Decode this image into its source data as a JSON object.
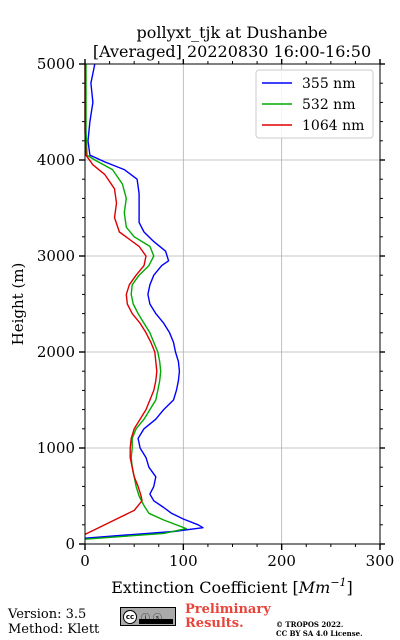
{
  "chart_data": {
    "type": "line",
    "title": "pollyxt_tjk at Dushanbe",
    "subtitle": "[Averaged] 20220830 16:00-16:50",
    "xlabel": "Extinction Coefficient [",
    "xlabel_unit": "Mm",
    "xlabel_exp": "−1",
    "xlabel_close": "]",
    "ylabel": "Height (m)",
    "xlim": [
      0,
      300
    ],
    "ylim": [
      0,
      5000
    ],
    "xticks": [
      0,
      100,
      200,
      300
    ],
    "yticks": [
      0,
      1000,
      2000,
      3000,
      4000,
      5000
    ],
    "grid": true,
    "legend_placement": "top-right",
    "series": [
      {
        "name": "355 nm",
        "color": "#0000ff",
        "points": [
          [
            0,
            60
          ],
          [
            50,
            100
          ],
          [
            90,
            130
          ],
          [
            120,
            170
          ],
          [
            115,
            200
          ],
          [
            100,
            260
          ],
          [
            88,
            320
          ],
          [
            80,
            380
          ],
          [
            70,
            450
          ],
          [
            66,
            520
          ],
          [
            70,
            600
          ],
          [
            72,
            700
          ],
          [
            65,
            800
          ],
          [
            62,
            900
          ],
          [
            56,
            1000
          ],
          [
            54,
            1100
          ],
          [
            60,
            1200
          ],
          [
            72,
            1300
          ],
          [
            80,
            1400
          ],
          [
            90,
            1500
          ],
          [
            93,
            1600
          ],
          [
            95,
            1700
          ],
          [
            96,
            1800
          ],
          [
            95,
            1900
          ],
          [
            92,
            2000
          ],
          [
            90,
            2100
          ],
          [
            86,
            2200
          ],
          [
            80,
            2300
          ],
          [
            72,
            2400
          ],
          [
            66,
            2500
          ],
          [
            64,
            2600
          ],
          [
            66,
            2700
          ],
          [
            70,
            2800
          ],
          [
            78,
            2900
          ],
          [
            85,
            2950
          ],
          [
            82,
            3050
          ],
          [
            70,
            3150
          ],
          [
            60,
            3250
          ],
          [
            55,
            3350
          ],
          [
            55,
            3500
          ],
          [
            55,
            3650
          ],
          [
            53,
            3800
          ],
          [
            40,
            3900
          ],
          [
            20,
            3980
          ],
          [
            5,
            4050
          ],
          [
            3,
            4200
          ],
          [
            5,
            4400
          ],
          [
            8,
            4600
          ],
          [
            6,
            4800
          ],
          [
            10,
            5000
          ]
        ]
      },
      {
        "name": "532 nm",
        "color": "#00aa00",
        "points": [
          [
            0,
            50
          ],
          [
            40,
            80
          ],
          [
            80,
            110
          ],
          [
            103,
            160
          ],
          [
            80,
            250
          ],
          [
            65,
            320
          ],
          [
            60,
            400
          ],
          [
            55,
            500
          ],
          [
            52,
            600
          ],
          [
            50,
            700
          ],
          [
            48,
            800
          ],
          [
            47,
            900
          ],
          [
            48,
            1000
          ],
          [
            48,
            1100
          ],
          [
            52,
            1200
          ],
          [
            60,
            1300
          ],
          [
            66,
            1400
          ],
          [
            72,
            1500
          ],
          [
            74,
            1600
          ],
          [
            76,
            1700
          ],
          [
            77,
            1800
          ],
          [
            76,
            1900
          ],
          [
            74,
            2000
          ],
          [
            70,
            2100
          ],
          [
            66,
            2200
          ],
          [
            60,
            2300
          ],
          [
            54,
            2400
          ],
          [
            49,
            2500
          ],
          [
            47,
            2600
          ],
          [
            48,
            2700
          ],
          [
            55,
            2800
          ],
          [
            65,
            2900
          ],
          [
            70,
            3000
          ],
          [
            66,
            3100
          ],
          [
            50,
            3200
          ],
          [
            42,
            3300
          ],
          [
            40,
            3450
          ],
          [
            42,
            3600
          ],
          [
            38,
            3750
          ],
          [
            28,
            3900
          ],
          [
            10,
            4000
          ],
          [
            2,
            4050
          ],
          [
            1,
            4300
          ],
          [
            1,
            4600
          ],
          [
            1,
            5000
          ]
        ]
      },
      {
        "name": "1064 nm",
        "color": "#dd0000",
        "points": [
          [
            0,
            100
          ],
          [
            10,
            150
          ],
          [
            30,
            250
          ],
          [
            50,
            350
          ],
          [
            58,
            450
          ],
          [
            57,
            500
          ],
          [
            54,
            600
          ],
          [
            50,
            700
          ],
          [
            48,
            800
          ],
          [
            46,
            900
          ],
          [
            46,
            1000
          ],
          [
            47,
            1100
          ],
          [
            50,
            1200
          ],
          [
            56,
            1300
          ],
          [
            62,
            1400
          ],
          [
            66,
            1500
          ],
          [
            70,
            1600
          ],
          [
            72,
            1700
          ],
          [
            73,
            1800
          ],
          [
            72,
            1900
          ],
          [
            71,
            2000
          ],
          [
            67,
            2100
          ],
          [
            62,
            2200
          ],
          [
            56,
            2300
          ],
          [
            48,
            2400
          ],
          [
            43,
            2500
          ],
          [
            42,
            2600
          ],
          [
            45,
            2700
          ],
          [
            52,
            2800
          ],
          [
            60,
            2900
          ],
          [
            62,
            3000
          ],
          [
            55,
            3100
          ],
          [
            35,
            3250
          ],
          [
            30,
            3400
          ],
          [
            32,
            3550
          ],
          [
            30,
            3700
          ],
          [
            20,
            3850
          ],
          [
            8,
            3950
          ],
          [
            1,
            4050
          ],
          [
            0,
            4300
          ],
          [
            0,
            4600
          ],
          [
            0,
            5000
          ]
        ]
      }
    ]
  },
  "footer": {
    "version": "Version: 3.5",
    "method": "Method: Klett",
    "cc_badge_text": "CC BY SA",
    "preliminary": "Preliminary",
    "results": "Results.",
    "copyright_line1": "© TROPOS 2022.",
    "copyright_line2": "CC BY SA 4.0 License."
  }
}
